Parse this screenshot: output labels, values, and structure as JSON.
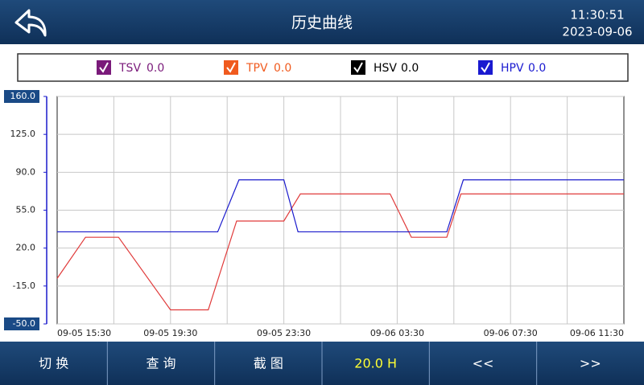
{
  "header": {
    "title": "历史曲线",
    "time": "11:30:51",
    "date": "2023-09-06"
  },
  "legend": [
    {
      "name": "TSV",
      "value": "0.0",
      "color": "#7a1a7a"
    },
    {
      "name": "TPV",
      "value": "0.0",
      "color": "#f05a1e"
    },
    {
      "name": "HSV",
      "value": "0.0",
      "color": "#000000"
    },
    {
      "name": "HPV",
      "value": "0.0",
      "color": "#1a1ad0"
    }
  ],
  "chart_data": {
    "type": "line",
    "xlim": [
      "09-05 15:30",
      "09-06 11:30"
    ],
    "xticks": [
      "09-05 15:30",
      "09-05 19:30",
      "09-05 23:30",
      "09-06 03:30",
      "09-06 07:30",
      "09-06 11:30"
    ],
    "ylim": [
      -50,
      160
    ],
    "yticks": [
      {
        "value": 160,
        "label": "160.0"
      },
      {
        "value": 125,
        "label": "125.0"
      },
      {
        "value": 90,
        "label": "90.0"
      },
      {
        "value": 55,
        "label": "55.0"
      },
      {
        "value": 20,
        "label": "20.0"
      },
      {
        "value": -15,
        "label": "-15.0"
      },
      {
        "value": -50,
        "label": "-50.0"
      }
    ],
    "grid": true,
    "series": [
      {
        "color": "#e03a3a",
        "x": [
          "09-05 15:30",
          "09-05 16:30",
          "09-05 17:40",
          "09-05 19:30",
          "09-05 20:50",
          "09-05 21:50",
          "09-05 23:30",
          "09-06 00:05",
          "09-06 03:15",
          "09-06 04:00",
          "09-06 05:15",
          "09-06 05:45",
          "09-06 11:30"
        ],
        "values": [
          -8,
          30,
          30,
          -37,
          -37,
          45,
          45,
          70,
          70,
          30,
          30,
          70,
          70
        ]
      },
      {
        "color": "#1a1acc",
        "x": [
          "09-05 15:30",
          "09-05 21:10",
          "09-05 21:55",
          "09-05 23:30",
          "09-06 00:00",
          "09-06 05:15",
          "09-06 05:50",
          "09-06 11:30"
        ],
        "values": [
          35,
          35,
          83,
          83,
          35,
          35,
          83,
          83
        ]
      }
    ]
  },
  "buttons": [
    "切 换",
    "查 询",
    "截 图",
    "20.0 H",
    "<<",
    ">>"
  ]
}
